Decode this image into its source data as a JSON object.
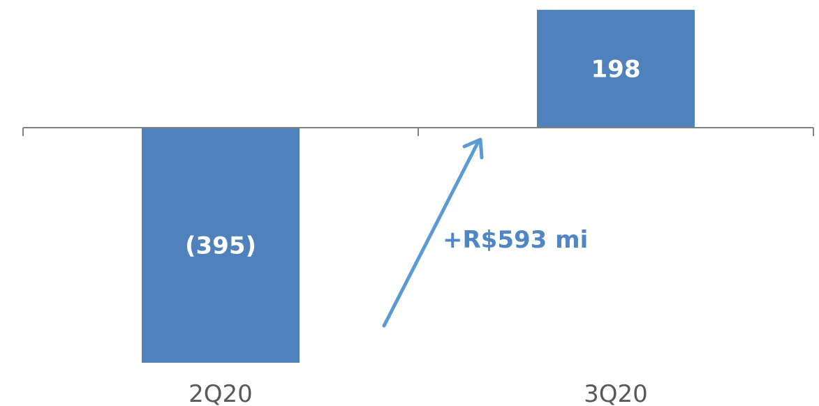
{
  "chart_data": {
    "type": "bar",
    "categories": [
      "2Q20",
      "3Q20"
    ],
    "values": [
      -395,
      198
    ],
    "value_labels": [
      "(395)",
      "198"
    ],
    "bar_color": "#4f81bd",
    "annotation": {
      "text": "+R$593 mi",
      "color": "#4f86c6"
    },
    "axis_color": "#808080",
    "grid": false,
    "legend": "none"
  }
}
